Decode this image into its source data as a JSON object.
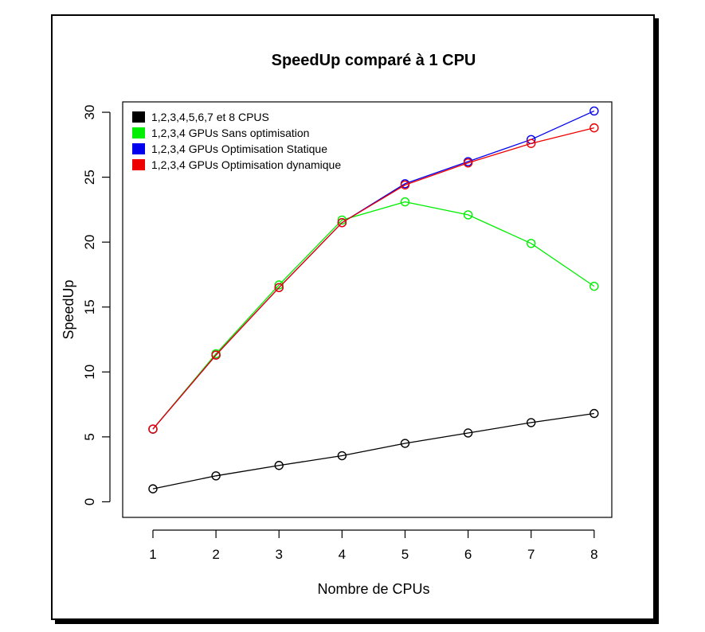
{
  "chart_data": {
    "type": "line",
    "title": "SpeedUp comparé à 1 CPU",
    "xlabel": "Nombre de CPUs",
    "ylabel": "SpeedUp",
    "x": [
      1,
      2,
      3,
      4,
      5,
      6,
      7,
      8
    ],
    "x_ticks": [
      "1",
      "2",
      "3",
      "4",
      "5",
      "6",
      "7",
      "8"
    ],
    "y_ticks": [
      "0",
      "5",
      "10",
      "15",
      "20",
      "25",
      "30"
    ],
    "xlim": [
      0.52,
      8.28
    ],
    "ylim": [
      -1.2,
      30.8
    ],
    "grid": false,
    "legend_position": "top-left",
    "series": [
      {
        "name": "1,2,3,4,5,6,7 et 8 CPUS",
        "color": "#000000",
        "x": [
          1,
          2,
          3,
          4,
          5,
          6,
          7,
          8
        ],
        "values": [
          1.0,
          2.0,
          2.8,
          3.55,
          4.5,
          5.3,
          6.1,
          6.8
        ]
      },
      {
        "name": "1,2,3,4 GPUs Sans optimisation",
        "color": "#00ee00",
        "x": [
          1,
          2,
          3,
          4,
          5,
          6,
          7,
          8
        ],
        "values": [
          5.6,
          11.4,
          16.7,
          21.7,
          23.1,
          22.1,
          19.9,
          16.6
        ]
      },
      {
        "name": "1,2,3,4 GPUs Optimisation Statique",
        "color": "#0000ee",
        "x": [
          1,
          2,
          3,
          4,
          5,
          6,
          7,
          8
        ],
        "values": [
          5.6,
          11.3,
          16.5,
          21.5,
          24.5,
          26.2,
          27.9,
          30.1
        ]
      },
      {
        "name": "1,2,3,4 GPUs Optimisation dynamique",
        "color": "#ee0000",
        "x": [
          1,
          2,
          3,
          4,
          5,
          6,
          7,
          8
        ],
        "values": [
          5.6,
          11.3,
          16.5,
          21.5,
          24.4,
          26.1,
          27.6,
          28.8
        ]
      }
    ]
  }
}
